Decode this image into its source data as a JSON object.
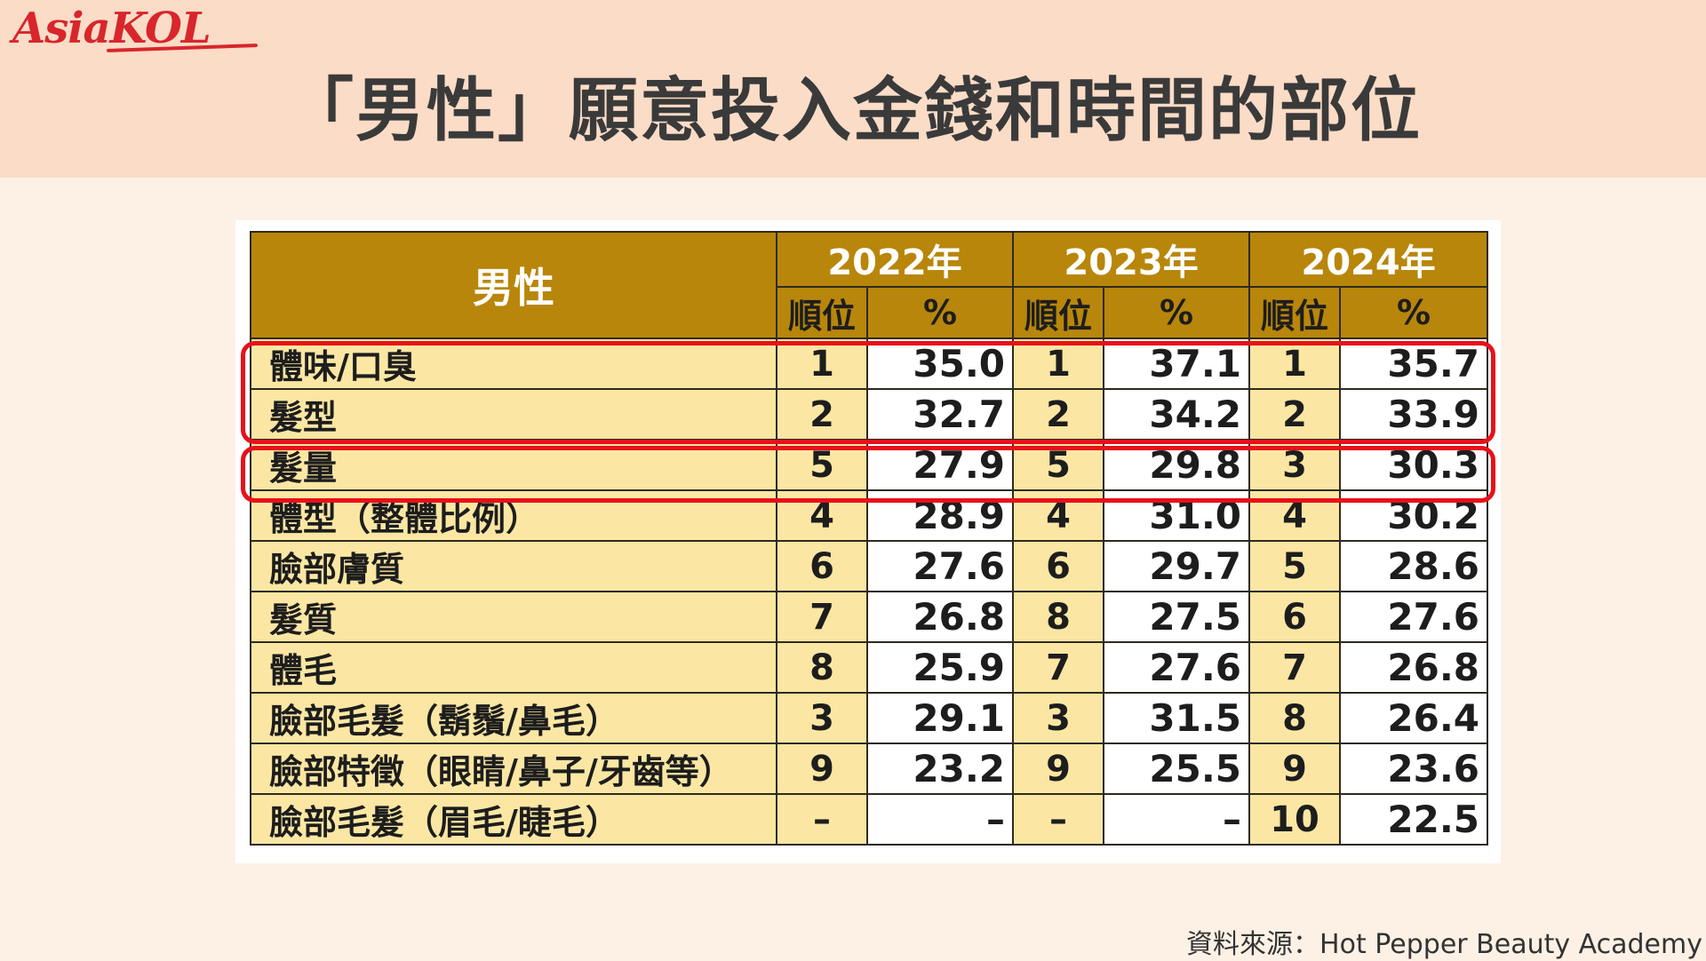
{
  "brand": {
    "logo_text": "AsiaKOL"
  },
  "page": {
    "title": "「男性」願意投入金錢和時間的部位"
  },
  "source": "資料來源：Hot Pepper Beauty Academy",
  "colors": {
    "header": "#b8860b",
    "row": "#fbe7a3",
    "highlight": "#e8101a",
    "brand": "#d8262c"
  },
  "chart_data": {
    "type": "table",
    "corner_label": "男性",
    "years": [
      "2022年",
      "2023年",
      "2024年"
    ],
    "sub_headers": [
      "順位",
      "%"
    ],
    "rows": [
      {
        "item": "體味/口臭",
        "values": [
          [
            "1",
            "35.0"
          ],
          [
            "1",
            "37.1"
          ],
          [
            "1",
            "35.7"
          ]
        ]
      },
      {
        "item": "髮型",
        "values": [
          [
            "2",
            "32.7"
          ],
          [
            "2",
            "34.2"
          ],
          [
            "2",
            "33.9"
          ]
        ]
      },
      {
        "item": "髮量",
        "values": [
          [
            "5",
            "27.9"
          ],
          [
            "5",
            "29.8"
          ],
          [
            "3",
            "30.3"
          ]
        ]
      },
      {
        "item": "體型（整體比例）",
        "values": [
          [
            "4",
            "28.9"
          ],
          [
            "4",
            "31.0"
          ],
          [
            "4",
            "30.2"
          ]
        ]
      },
      {
        "item": "臉部膚質",
        "values": [
          [
            "6",
            "27.6"
          ],
          [
            "6",
            "29.7"
          ],
          [
            "5",
            "28.6"
          ]
        ]
      },
      {
        "item": "髮質",
        "values": [
          [
            "7",
            "26.8"
          ],
          [
            "8",
            "27.5"
          ],
          [
            "6",
            "27.6"
          ]
        ]
      },
      {
        "item": "體毛",
        "values": [
          [
            "8",
            "25.9"
          ],
          [
            "7",
            "27.6"
          ],
          [
            "7",
            "26.8"
          ]
        ]
      },
      {
        "item": "臉部毛髮（鬍鬚/鼻毛）",
        "values": [
          [
            "3",
            "29.1"
          ],
          [
            "3",
            "31.5"
          ],
          [
            "8",
            "26.4"
          ]
        ]
      },
      {
        "item": "臉部特徵（眼睛/鼻子/牙齒等）",
        "values": [
          [
            "9",
            "23.2"
          ],
          [
            "9",
            "25.5"
          ],
          [
            "9",
            "23.6"
          ]
        ]
      },
      {
        "item": "臉部毛髮（眉毛/睫毛）",
        "values": [
          [
            "–",
            "–"
          ],
          [
            "–",
            "–"
          ],
          [
            "10",
            "22.5"
          ]
        ]
      }
    ]
  }
}
